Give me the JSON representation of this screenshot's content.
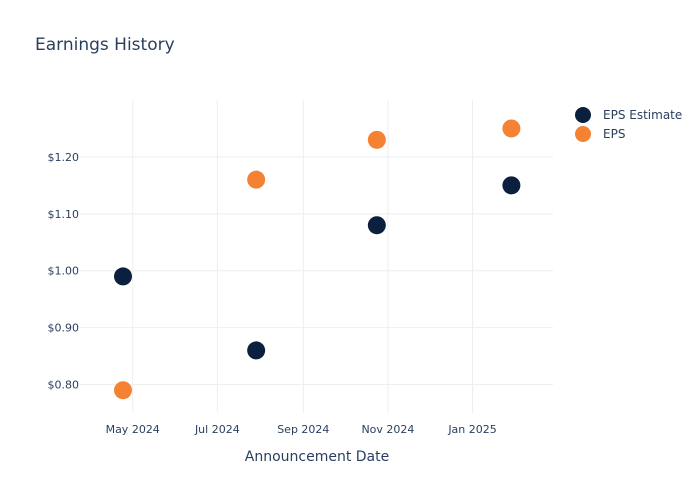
{
  "chart_data": {
    "type": "scatter",
    "title": "Earnings History",
    "xlabel": "Announcement Date",
    "ylabel": "",
    "x_ticks": [
      {
        "date": "2024-05-01",
        "label": "May 2024"
      },
      {
        "date": "2024-07-01",
        "label": "Jul 2024"
      },
      {
        "date": "2024-09-01",
        "label": "Sep 2024"
      },
      {
        "date": "2024-11-01",
        "label": "Nov 2024"
      },
      {
        "date": "2025-01-01",
        "label": "Jan 2025"
      }
    ],
    "y_ticks": [
      {
        "value": 0.8,
        "label": "$0.80"
      },
      {
        "value": 0.9,
        "label": "$0.90"
      },
      {
        "value": 1.0,
        "label": "$1.00"
      },
      {
        "value": 1.1,
        "label": "$1.10"
      },
      {
        "value": 1.2,
        "label": "$1.20"
      }
    ],
    "xlim": [
      "2024-03-24",
      "2025-02-28"
    ],
    "ylim": [
      0.75,
      1.3
    ],
    "grid": true,
    "legend_position": "top-right",
    "series": [
      {
        "name": "EPS Estimate",
        "color": "#0b1f3f",
        "points": [
          {
            "x": "2024-04-24",
            "y": 0.99
          },
          {
            "x": "2024-07-29",
            "y": 0.86
          },
          {
            "x": "2024-10-24",
            "y": 1.08
          },
          {
            "x": "2025-01-29",
            "y": 1.15
          }
        ]
      },
      {
        "name": "EPS",
        "color": "#f58232",
        "points": [
          {
            "x": "2024-04-24",
            "y": 0.79
          },
          {
            "x": "2024-07-29",
            "y": 1.16
          },
          {
            "x": "2024-10-24",
            "y": 1.23
          },
          {
            "x": "2025-01-29",
            "y": 1.25
          }
        ]
      }
    ]
  }
}
